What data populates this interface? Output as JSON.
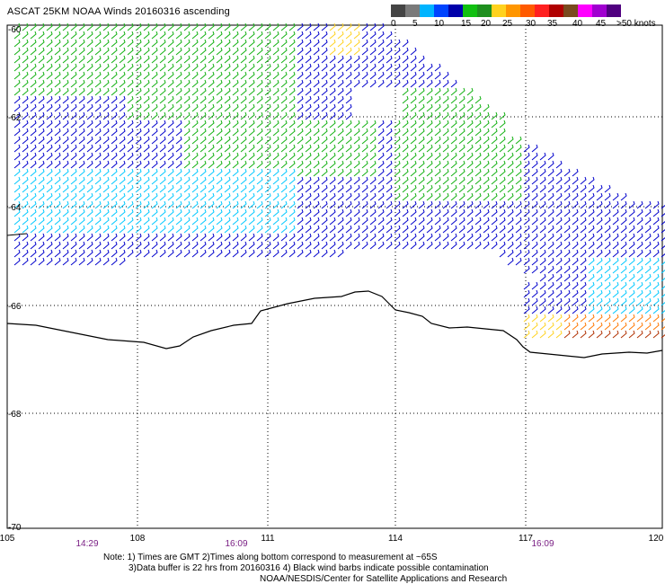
{
  "title": "ASCAT 25KM NOAA Winds 20160316 ascending",
  "colorbar": {
    "colors": [
      "#444444",
      "#7a7a7a",
      "#00b4ff",
      "#0044ff",
      "#0000aa",
      "#10c010",
      "#1e8f1e",
      "#ffd21e",
      "#ff9600",
      "#ff5a00",
      "#ff2020",
      "#b00000",
      "#7a4a1e",
      "#ff00ff",
      "#a000d0",
      "#500080"
    ],
    "labels": [
      "0",
      "5",
      "10",
      "15",
      "20",
      "25",
      "30",
      "35",
      "40",
      "45",
      ">50 knots"
    ]
  },
  "lat_labels": [
    "-60",
    "-62",
    "-64",
    "-66",
    "-68",
    "-70"
  ],
  "lon_labels": [
    "105",
    "108",
    "111",
    "114",
    "117",
    "120"
  ],
  "time_labels": [
    "14:29",
    "16:09",
    "16:09"
  ],
  "notes": {
    "line1": "Note: 1) Times are GMT 2)Times along bottom correspond to measurement at ~65S",
    "line2": "3)Data buffer is 22 hrs from 20160316 4) Black wind barbs indicate possible contamination",
    "line3": "NOAA/NESDIS/Center for Satellite Applications and Research"
  },
  "wind_color_legend": {
    "calm_light": "#00c8ff",
    "moderate": "#0000cc",
    "fresh": "#10b010",
    "strong": "#ffd21e",
    "gale": "#ff7800",
    "storm": "#b03000"
  }
}
